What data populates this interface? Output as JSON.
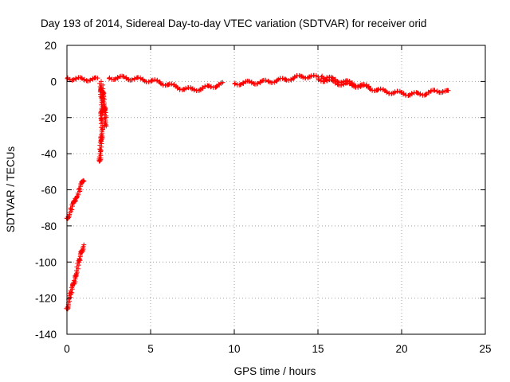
{
  "chart_data": {
    "type": "scatter",
    "title": "Day 193 of 2014, Sidereal Day-to-day VTEC variation (SDTVAR) for receiver orid",
    "xlabel": "GPS time / hours",
    "ylabel": "SDTVAR / TECUs",
    "xlim": [
      0,
      25
    ],
    "ylim": [
      -140,
      20
    ],
    "xticks": [
      0,
      5,
      10,
      15,
      20,
      25
    ],
    "yticks": [
      20,
      0,
      -20,
      -40,
      -60,
      -80,
      -100,
      -120,
      -140
    ],
    "grid": true,
    "marker": "plus",
    "colors": {
      "series": "#ff0000",
      "grid": "#a0a0a0",
      "axes": "#000000"
    },
    "series": [
      {
        "segments": [
          {
            "points": [
              [
                0.0,
                2.0
              ],
              [
                0.5,
                1.5
              ],
              [
                1.0,
                1.0
              ],
              [
                1.5,
                1.5
              ],
              [
                1.8,
                1.0
              ]
            ]
          },
          {
            "points": [
              [
                2.0,
                0.0
              ],
              [
                2.05,
                -8.0
              ],
              [
                2.1,
                -12.0
              ],
              [
                2.05,
                -20.0
              ],
              [
                2.1,
                -26.0
              ],
              [
                2.05,
                -32.0
              ],
              [
                2.0,
                -38.0
              ],
              [
                1.95,
                -45.0
              ]
            ]
          },
          {
            "points": [
              [
                2.1,
                -2.0
              ],
              [
                2.15,
                -6.0
              ],
              [
                2.2,
                -10.0
              ],
              [
                2.25,
                -15.0
              ],
              [
                2.3,
                -20.0
              ],
              [
                2.3,
                -25.0
              ]
            ]
          },
          {
            "points": [
              [
                2.5,
                2.0
              ],
              [
                3.0,
                2.0
              ],
              [
                3.5,
                2.0
              ],
              [
                4.0,
                1.5
              ],
              [
                4.5,
                1.0
              ],
              [
                5.0,
                0.5
              ],
              [
                5.5,
                -0.5
              ],
              [
                6.0,
                -1.5
              ],
              [
                6.5,
                -3.0
              ],
              [
                7.0,
                -4.0
              ],
              [
                7.5,
                -4.5
              ],
              [
                8.0,
                -4.0
              ],
              [
                8.5,
                -3.0
              ],
              [
                9.0,
                -2.0
              ],
              [
                9.3,
                -1.5
              ]
            ]
          },
          {
            "points": [
              [
                10.0,
                -1.0
              ],
              [
                10.5,
                -1.0
              ],
              [
                11.0,
                -0.5
              ],
              [
                11.5,
                -0.5
              ],
              [
                12.0,
                0.0
              ],
              [
                12.5,
                0.5
              ],
              [
                13.0,
                1.0
              ],
              [
                13.5,
                2.0
              ],
              [
                14.0,
                2.5
              ],
              [
                14.5,
                3.0
              ],
              [
                15.0,
                2.0
              ]
            ]
          },
          {
            "points": [
              [
                15.0,
                1.5
              ],
              [
                15.5,
                0.5
              ],
              [
                16.0,
                -0.5
              ],
              [
                16.5,
                -1.5
              ],
              [
                17.0,
                -2.0
              ],
              [
                17.5,
                -2.5
              ],
              [
                18.0,
                -3.5
              ],
              [
                18.5,
                -4.5
              ],
              [
                19.0,
                -5.5
              ],
              [
                19.5,
                -6.0
              ],
              [
                20.0,
                -6.5
              ],
              [
                20.5,
                -7.0
              ],
              [
                21.0,
                -7.0
              ],
              [
                21.5,
                -6.5
              ],
              [
                22.0,
                -5.5
              ],
              [
                22.5,
                -5.0
              ],
              [
                22.8,
                -6.0
              ]
            ]
          },
          {
            "points": [
              [
                15.2,
                3.0
              ],
              [
                15.5,
                2.0
              ],
              [
                16.0,
                1.0
              ],
              [
                16.5,
                0.0
              ],
              [
                17.0,
                -1.0
              ],
              [
                17.5,
                -2.0
              ],
              [
                18.0,
                -3.0
              ]
            ]
          },
          {
            "points": [
              [
                0.0,
                -76.0
              ],
              [
                0.25,
                -71.0
              ],
              [
                0.5,
                -65.0
              ],
              [
                0.75,
                -60.0
              ],
              [
                1.0,
                -54.0
              ]
            ]
          },
          {
            "points": [
              [
                0.0,
                -126.0
              ],
              [
                0.25,
                -117.0
              ],
              [
                0.5,
                -108.0
              ],
              [
                0.75,
                -99.0
              ],
              [
                1.0,
                -90.0
              ]
            ]
          }
        ]
      }
    ]
  }
}
